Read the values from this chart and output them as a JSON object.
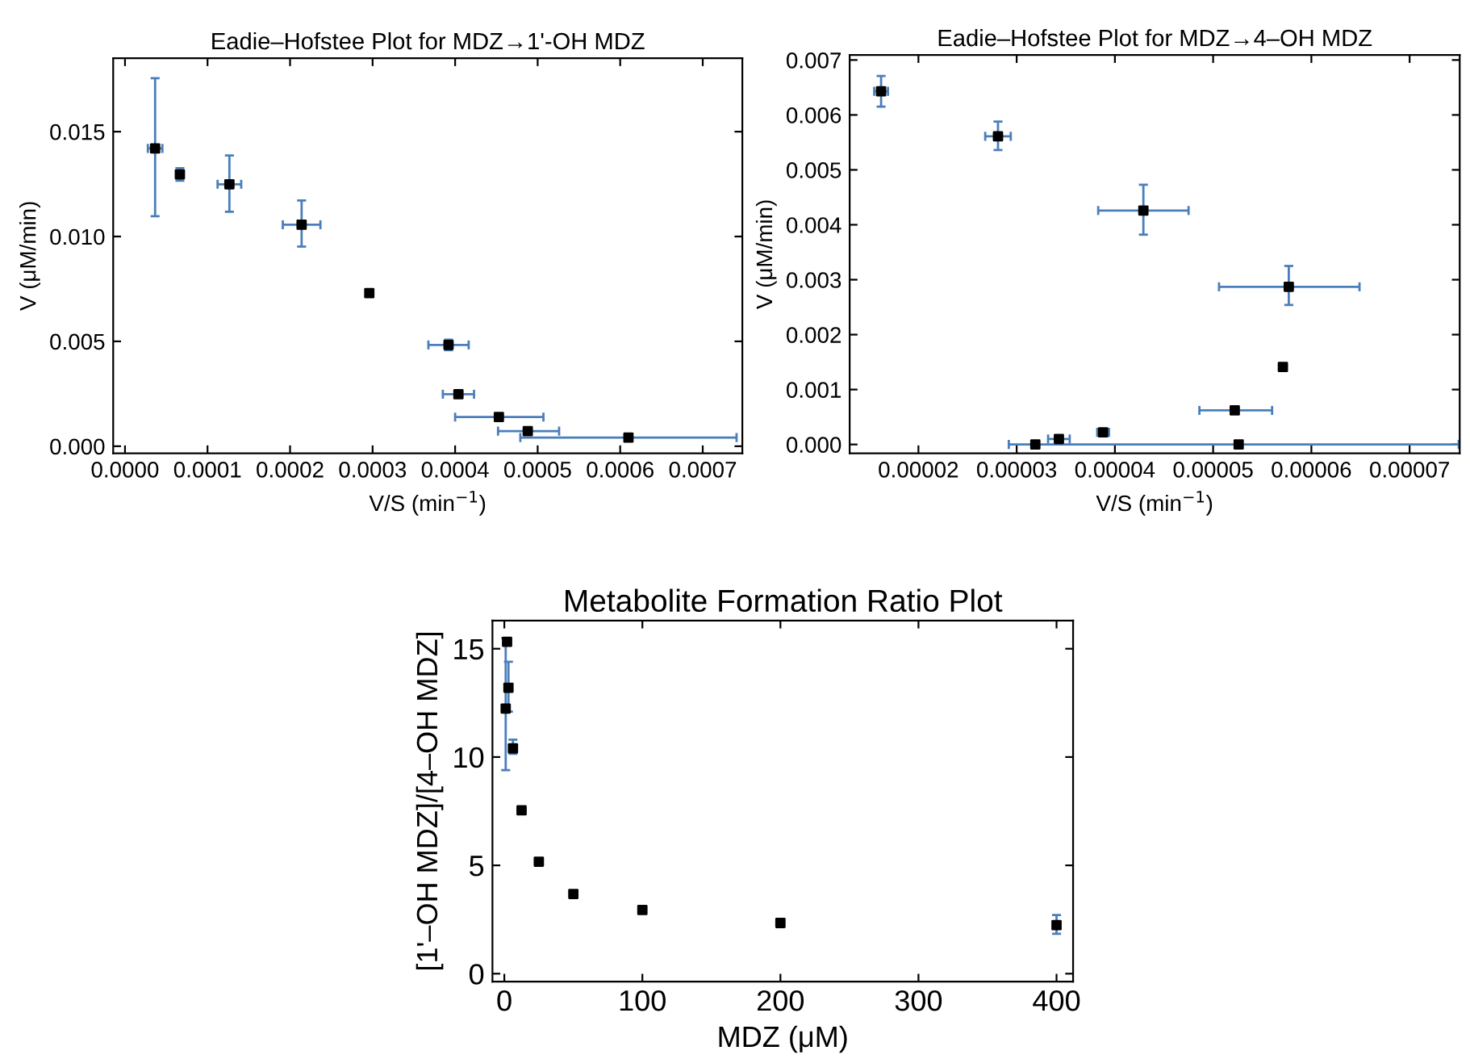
{
  "chart_data": [
    {
      "type": "scatter",
      "title": "Eadie–Hofstee Plot for MDZ→1'-OH MDZ",
      "xlabel": "V/S (min$^{−1}$)",
      "ylabel": "V (μM/min)",
      "marker": "square",
      "x": [
        3.65e-05,
        6.65e-05,
        0.0001265,
        0.000214,
        0.000296,
        0.000392,
        0.000404,
        0.000453,
        0.000488,
        0.00061
      ],
      "series": [
        {
          "color": "#000000",
          "values": [
            0.0142,
            0.01296,
            0.01249,
            0.01056,
            0.0073,
            0.00483,
            0.00248,
            0.00139,
            0.00072,
            0.00041
          ],
          "errors": [
            [
              0.01097,
              0.01755
            ],
            [
              0.01266,
              0.01326
            ],
            [
              0.01118,
              0.01386
            ],
            [
              0.00952,
              0.01172
            ],
            null,
            [
              0.00458,
              0.00508
            ],
            null,
            null,
            null,
            null
          ],
          "xerrors": [
            [
              2.77e-05,
              4.53e-05
            ],
            null,
            [
              0.0001122,
              0.0001408
            ],
            [
              0.0001912,
              0.0002368
            ],
            null,
            [
              0.0003676,
              0.0004164
            ],
            [
              0.0003851,
              0.0004229
            ],
            [
              0.0004,
              0.000507
            ],
            [
              0.000452,
              0.000526
            ],
            [
              0.000479,
              0.000741
            ]
          ]
        }
      ],
      "xlim": [
        -1.43e-05,
        0.000748
      ],
      "ylim": [
        -0.000335,
        0.0185
      ],
      "xticks": [
        {
          "value": 0,
          "label": "0.0000"
        },
        {
          "value": 0.0001,
          "label": "0.0001"
        },
        {
          "value": 0.0002,
          "label": "0.0002"
        },
        {
          "value": 0.0003,
          "label": "0.0003"
        },
        {
          "value": 0.0004,
          "label": "0.0004"
        },
        {
          "value": 0.0005,
          "label": "0.0005"
        },
        {
          "value": 0.0006,
          "label": "0.0006"
        },
        {
          "value": 0.0007,
          "label": "0.0007"
        }
      ],
      "yticks": [
        {
          "value": 0,
          "label": "0.000"
        },
        {
          "value": 0.005,
          "label": "0.005"
        },
        {
          "value": 0.01,
          "label": "0.010"
        },
        {
          "value": 0.015,
          "label": "0.015"
        }
      ]
    },
    {
      "type": "scatter",
      "title": "Eadie–Hofstee Plot for MDZ→4–OH MDZ",
      "xlabel": "V/S (min$^{−1}$)",
      "ylabel": "V (μM/min)",
      "marker": "square",
      "x": [
        1.62e-05,
        2.81e-05,
        4.29e-05,
        5.77e-05,
        5.71e-05,
        5.22e-05,
        3.88e-05,
        3.43e-05,
        3.19e-05,
        5.26e-05
      ],
      "series": [
        {
          "color": "#000000",
          "values": [
            0.00643,
            0.00561,
            0.00426,
            0.00287,
            0.00141,
            0.00062,
            0.00022,
            0.0001,
            0.0,
            0.0
          ],
          "errors": [
            [
              0.00615,
              0.00671
            ],
            [
              0.00536,
              0.00588
            ],
            [
              0.00382,
              0.00473
            ],
            [
              0.00254,
              0.00325
            ],
            null,
            null,
            null,
            null,
            null,
            null
          ],
          "xerrors": [
            [
              1.55e-05,
              1.69e-05
            ],
            [
              2.68e-05,
              2.94e-05
            ],
            [
              3.83e-05,
              4.75e-05
            ],
            [
              5.06e-05,
              6.49e-05
            ],
            null,
            [
              4.86e-05,
              5.6e-05
            ],
            [
              3.82e-05,
              3.94e-05
            ],
            [
              3.32e-05,
              3.54e-05
            ],
            null,
            [
              2.92e-05,
              7.5e-05
            ]
          ]
        }
      ],
      "xlim": [
        1.3e-05,
        7.51e-05
      ],
      "ylim": [
        -0.00016,
        0.00709
      ],
      "xticks": [
        {
          "value": 2e-05,
          "label": "0.00002"
        },
        {
          "value": 3e-05,
          "label": "0.00003"
        },
        {
          "value": 4e-05,
          "label": "0.00004"
        },
        {
          "value": 5e-05,
          "label": "0.00005"
        },
        {
          "value": 6e-05,
          "label": "0.00006"
        },
        {
          "value": 7e-05,
          "label": "0.00007"
        }
      ],
      "yticks": [
        {
          "value": 0,
          "label": "0.000"
        },
        {
          "value": 0.001,
          "label": "0.001"
        },
        {
          "value": 0.002,
          "label": "0.002"
        },
        {
          "value": 0.003,
          "label": "0.003"
        },
        {
          "value": 0.004,
          "label": "0.004"
        },
        {
          "value": 0.005,
          "label": "0.005"
        },
        {
          "value": 0.006,
          "label": "0.006"
        },
        {
          "value": 0.007,
          "label": "0.007"
        }
      ]
    },
    {
      "type": "scatter",
      "title": "Metabolite Formation Ratio Plot",
      "xlabel": "MDZ (μM)",
      "ylabel": "[1'–OH MDZ]/[4–OH MDZ]",
      "marker": "square",
      "x": [
        1,
        2,
        3,
        6.25,
        12.5,
        25,
        50,
        100,
        200,
        400
      ],
      "series": [
        {
          "color": "#000000",
          "values": [
            12.24,
            15.32,
            13.2,
            10.4,
            7.54,
            5.17,
            3.68,
            2.94,
            2.34,
            2.24
          ],
          "errors": [
            [
              9.4,
              15.5
            ],
            null,
            [
              12.1,
              14.4
            ],
            [
              10.15,
              10.8
            ],
            null,
            null,
            null,
            null,
            null,
            [
              1.84,
              2.71
            ]
          ]
        }
      ],
      "xlim": [
        -8.6,
        412
      ],
      "ylim": [
        -0.37,
        16.3
      ],
      "xticks": [
        0,
        100,
        200,
        300,
        400
      ],
      "yticks": [
        0,
        5,
        10,
        15
      ]
    }
  ]
}
